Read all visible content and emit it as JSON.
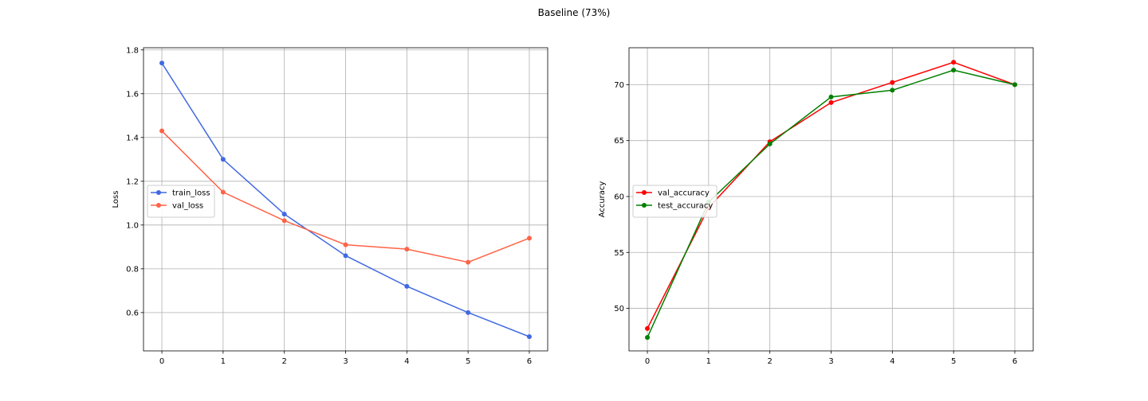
{
  "figure": {
    "title": "Baseline (73%)"
  },
  "chart_data": [
    {
      "type": "line",
      "title": "",
      "xlabel": "",
      "ylabel": "Loss",
      "x": [
        0,
        1,
        2,
        3,
        4,
        5,
        6
      ],
      "xticks": [
        "0",
        "1",
        "2",
        "3",
        "4",
        "5",
        "6"
      ],
      "yticks": [
        "0.6",
        "0.8",
        "1.0",
        "1.2",
        "1.4",
        "1.6",
        "1.8"
      ],
      "xlim": [
        -0.3,
        6.3
      ],
      "ylim": [
        0.425,
        1.81
      ],
      "grid": true,
      "legend_position": "center-left",
      "series": [
        {
          "name": "train_loss",
          "color": "#4169e1",
          "marker": "circle",
          "values": [
            1.74,
            1.3,
            1.05,
            0.86,
            0.72,
            0.6,
            0.49
          ]
        },
        {
          "name": "val_loss",
          "color": "#ff6347",
          "marker": "circle",
          "values": [
            1.43,
            1.15,
            1.02,
            0.91,
            0.89,
            0.83,
            0.94
          ]
        }
      ]
    },
    {
      "type": "line",
      "title": "",
      "xlabel": "",
      "ylabel": "Accuracy",
      "x": [
        0,
        1,
        2,
        3,
        4,
        5,
        6
      ],
      "xticks": [
        "0",
        "1",
        "2",
        "3",
        "4",
        "5",
        "6"
      ],
      "yticks": [
        "50",
        "55",
        "60",
        "65",
        "70"
      ],
      "xlim": [
        -0.3,
        6.3
      ],
      "ylim": [
        46.2,
        73.3
      ],
      "grid": true,
      "legend_position": "center-left",
      "series": [
        {
          "name": "val_accuracy",
          "color": "#ff0000",
          "marker": "circle",
          "values": [
            48.2,
            59.0,
            64.9,
            68.4,
            70.2,
            72.0,
            70.0
          ]
        },
        {
          "name": "test_accuracy",
          "color": "#008000",
          "marker": "circle",
          "values": [
            47.4,
            59.5,
            64.7,
            68.9,
            69.5,
            71.3,
            70.0
          ]
        }
      ]
    }
  ]
}
